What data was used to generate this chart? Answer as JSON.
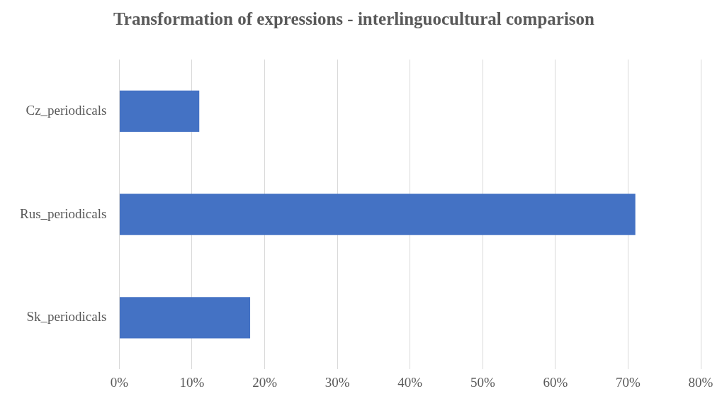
{
  "chart_data": {
    "type": "bar",
    "orientation": "horizontal",
    "title": "Transformation of expressions - interlinguocultural comparison",
    "categories": [
      "Cz_periodicals",
      "Rus_periodicals",
      "Sk_periodicals"
    ],
    "values": [
      11,
      71,
      18
    ],
    "color": "#4472c4",
    "xlim": [
      0,
      80
    ],
    "xticks": [
      {
        "value": 0,
        "label": "0%"
      },
      {
        "value": 10,
        "label": "10%"
      },
      {
        "value": 20,
        "label": "20%"
      },
      {
        "value": 30,
        "label": "30%"
      },
      {
        "value": 40,
        "label": "40%"
      },
      {
        "value": 50,
        "label": "50%"
      },
      {
        "value": 60,
        "label": "60%"
      },
      {
        "value": 70,
        "label": "70%"
      },
      {
        "value": 80,
        "label": "80%"
      }
    ],
    "grid": "x",
    "legend": false
  }
}
